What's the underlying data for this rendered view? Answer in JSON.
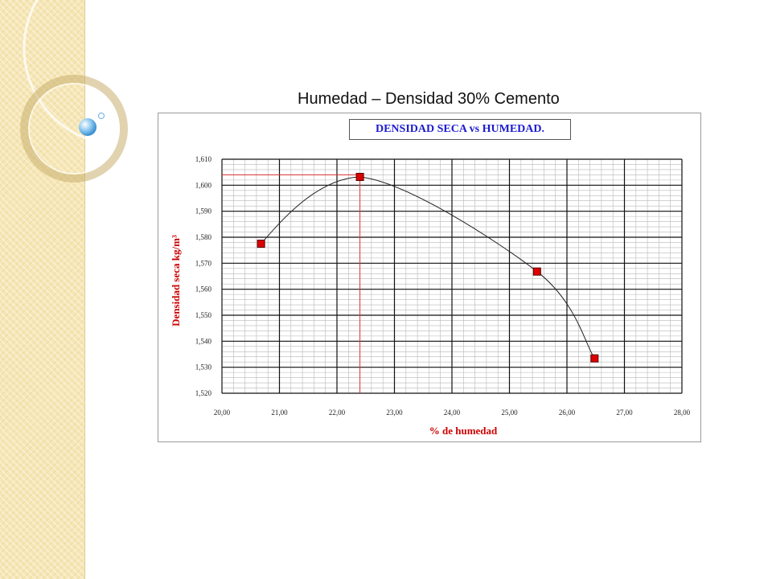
{
  "slide": {
    "title": "Humedad – Densidad 30% Cemento"
  },
  "colors": {
    "marker_fill": "#dd0000",
    "marker_stroke": "#550000",
    "ref_line": "#e03030",
    "chart_title_text": "#1b1bd0",
    "axis_title_text": "#cc0000",
    "side_panel": "#f6e6b4"
  },
  "chart_data": {
    "type": "scatter",
    "title": "DENSIDAD SECA vs HUMEDAD.",
    "xlabel": "% de humedad",
    "ylabel": "Densidad seca kg/m³",
    "xlim": [
      20,
      28
    ],
    "ylim": [
      1.52,
      1.61
    ],
    "grid": true,
    "x_ticks": [
      "20,00",
      "21,00",
      "22,00",
      "23,00",
      "24,00",
      "25,00",
      "26,00",
      "27,00",
      "28,00"
    ],
    "y_ticks": [
      "1,520",
      "1,530",
      "1,540",
      "1,550",
      "1,560",
      "1,570",
      "1,580",
      "1,590",
      "1,600",
      "1,610"
    ],
    "series": [
      {
        "points": [
          {
            "x": 20.68,
            "y": 1.5775
          },
          {
            "x": 22.4,
            "y": 1.6032
          },
          {
            "x": 25.48,
            "y": 1.5668
          },
          {
            "x": 26.48,
            "y": 1.5334
          }
        ]
      }
    ],
    "smooth_curve": true,
    "reference_lines": {
      "x": 22.4,
      "y": 1.604
    }
  }
}
